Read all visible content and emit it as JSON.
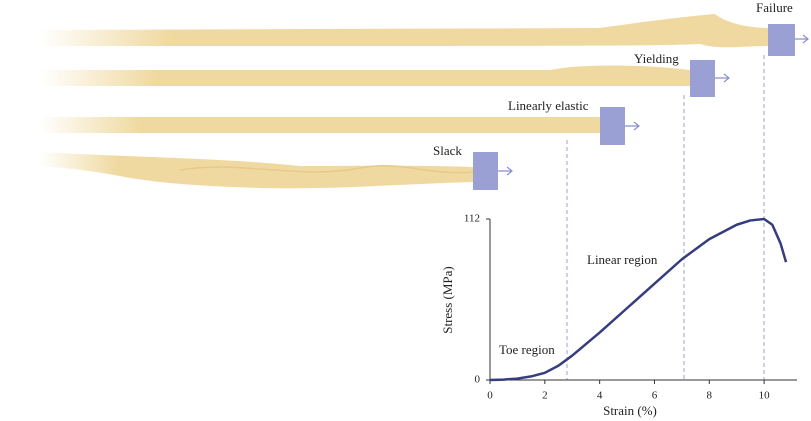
{
  "stages": [
    "Failure",
    "Yielding",
    "Linearly elastic",
    "Slack"
  ],
  "chart_data": {
    "type": "line",
    "x_label": "Strain (%)",
    "y_label": "Stress (MPa)",
    "annotations": [
      "Toe region",
      "Linear region"
    ],
    "xlim": [
      0,
      11.2
    ],
    "ylim": [
      0,
      112
    ],
    "xticks": [
      0,
      2,
      4,
      6,
      8,
      10
    ],
    "yticks": [
      0,
      112
    ],
    "x": [
      0,
      0.5,
      1,
      1.5,
      2,
      2.5,
      3,
      4,
      5,
      6,
      7,
      8,
      9,
      9.5,
      10,
      10.3,
      10.6,
      10.8
    ],
    "series": [
      {
        "color": "#353d7e",
        "values": [
          0,
          0.3,
          1,
          2.5,
          5,
          10,
          17,
          33,
          50,
          67,
          84,
          98,
          108,
          111,
          112,
          108,
          95,
          82
        ]
      }
    ]
  }
}
